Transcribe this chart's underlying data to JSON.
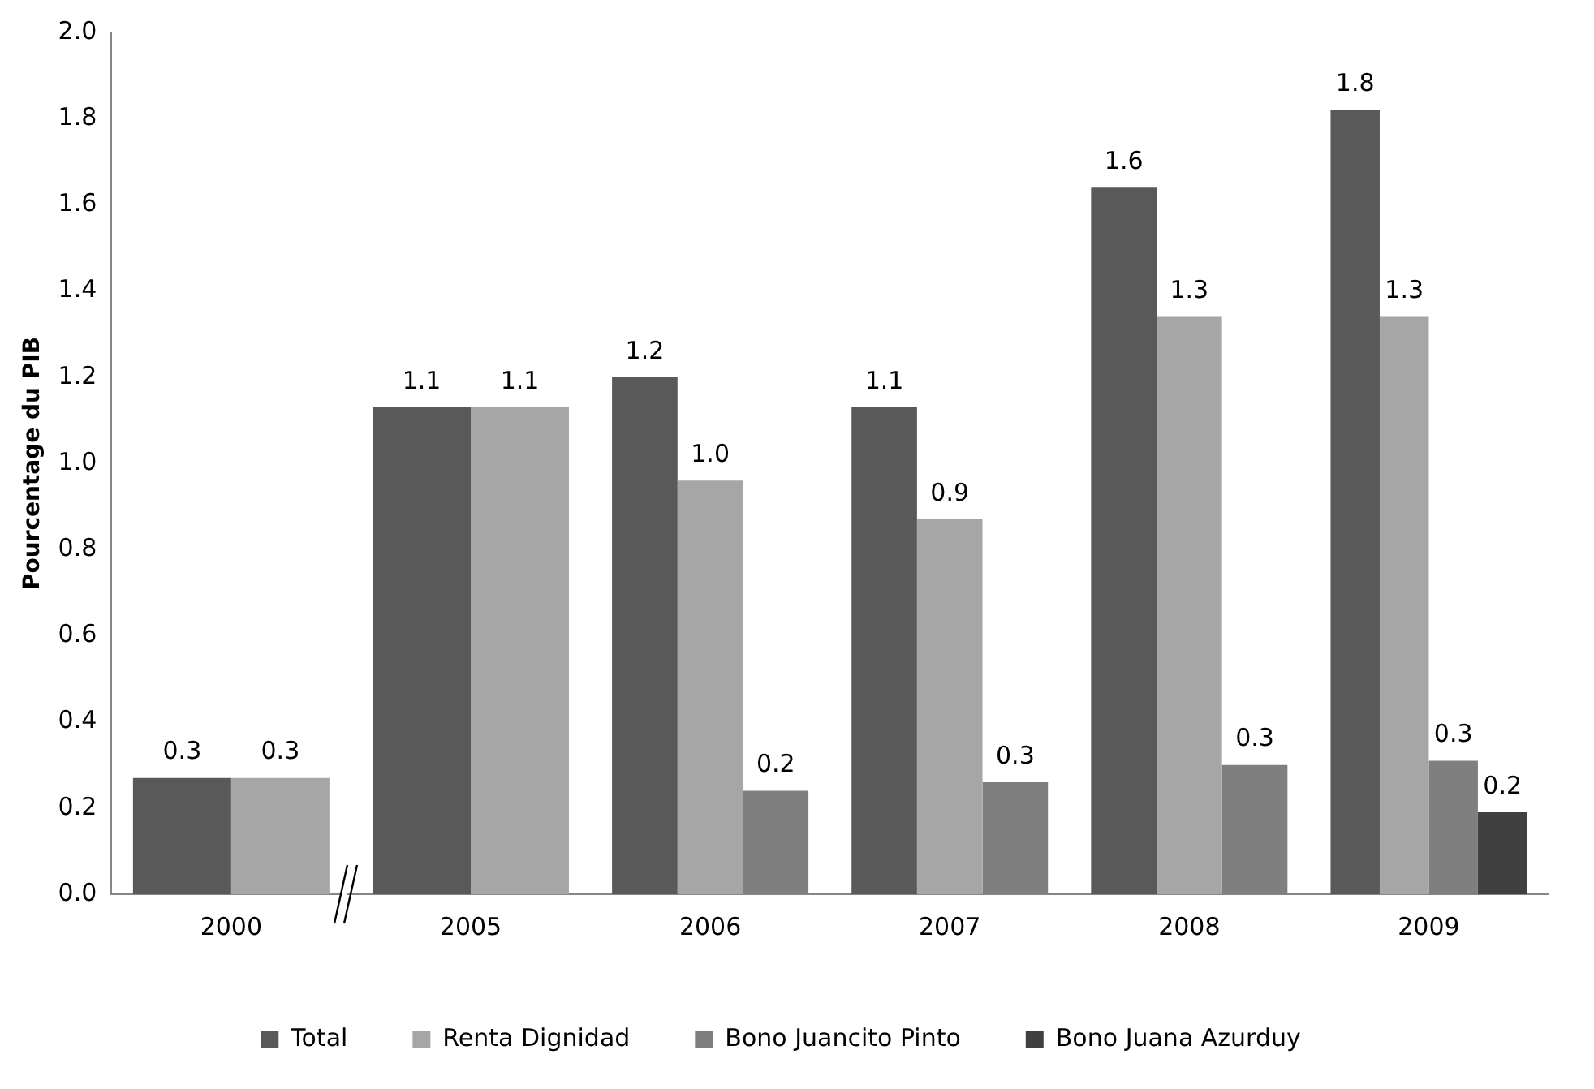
{
  "chart_data": {
    "type": "bar",
    "ylabel": "Pourcentage du PIB",
    "categories": [
      "2000",
      "2005",
      "2006",
      "2007",
      "2008",
      "2009"
    ],
    "series": [
      {
        "name": "Total",
        "color": "#595959",
        "values": [
          0.27,
          1.13,
          1.2,
          1.13,
          1.64,
          1.82
        ],
        "value_labels": [
          "0.3",
          "1.1",
          "1.2",
          "1.1",
          "1.6",
          "1.8"
        ]
      },
      {
        "name": "Renta Dignidad",
        "color": "#a6a6a6",
        "values": [
          0.27,
          1.13,
          0.96,
          0.87,
          1.34,
          1.34
        ],
        "value_labels": [
          "0.3",
          "1.1",
          "1.0",
          "0.9",
          "1.3",
          "1.3"
        ]
      },
      {
        "name": "Bono Juancito Pinto",
        "color": "#7f7f7f",
        "values": [
          null,
          null,
          0.24,
          0.26,
          0.3,
          0.31
        ],
        "value_labels": [
          null,
          null,
          "0.2",
          "0.3",
          "0.3",
          "0.3"
        ]
      },
      {
        "name": "Bono Juana Azurduy",
        "color": "#404040",
        "values": [
          null,
          null,
          null,
          null,
          null,
          0.19
        ],
        "value_labels": [
          null,
          null,
          null,
          null,
          null,
          "0.2"
        ]
      }
    ],
    "ylim": [
      0,
      2
    ],
    "yticks": [
      {
        "value": 0,
        "label": "0.0"
      },
      {
        "value": 0.2,
        "label": "0.2"
      },
      {
        "value": 0.4,
        "label": "0.4"
      },
      {
        "value": 0.6,
        "label": "0.6"
      },
      {
        "value": 0.8,
        "label": "0.8"
      },
      {
        "value": 1,
        "label": "1.0"
      },
      {
        "value": 1.2,
        "label": "1.2"
      },
      {
        "value": 1.4,
        "label": "1.4"
      },
      {
        "value": 1.6,
        "label": "1.6"
      },
      {
        "value": 1.8,
        "label": "1.8"
      },
      {
        "value": 2,
        "label": "2.0"
      }
    ],
    "grid": false,
    "legend": "bottom"
  }
}
